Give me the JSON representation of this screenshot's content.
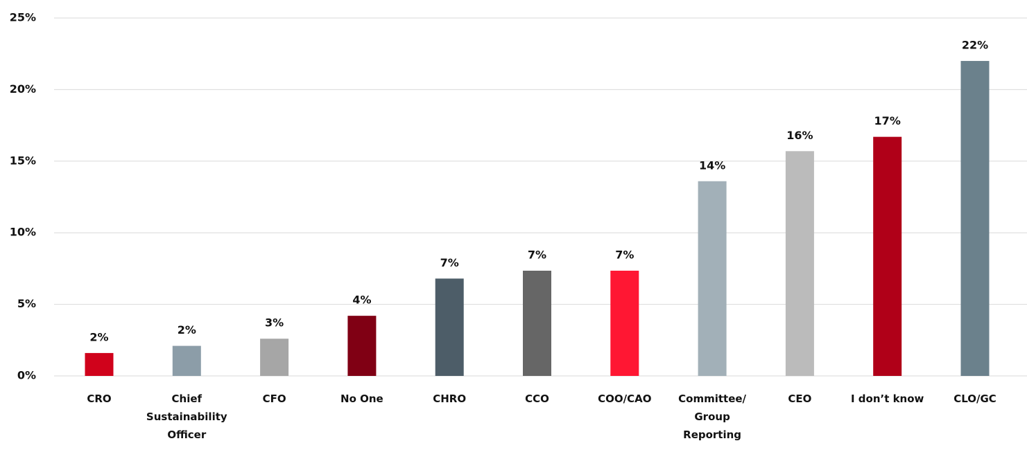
{
  "chart_data": {
    "type": "bar",
    "categories": [
      "CRO",
      "Chief\nSustainability\nOfficer",
      "CFO",
      "No One",
      "CHRO",
      "CCO",
      "COO/CAO",
      "Committee/\nGroup\nReporting",
      "CEO",
      "I don’t know",
      "CLO/GC"
    ],
    "values": [
      1.6,
      2.1,
      2.6,
      4.2,
      6.8,
      7.35,
      7.35,
      13.6,
      15.7,
      16.7,
      22.0
    ],
    "value_labels": [
      "2%",
      "2%",
      "3%",
      "4%",
      "7%",
      "7%",
      "7%",
      "14%",
      "16%",
      "17%",
      "22%"
    ],
    "colors": [
      "#d0021b",
      "#8c9da8",
      "#a6a6a6",
      "#800014",
      "#4d5d68",
      "#666666",
      "#ff1733",
      "#a2b0b8",
      "#bbbbbb",
      "#b00018",
      "#6b818c"
    ],
    "ylim": [
      0,
      25
    ],
    "yticks": [
      {
        "value": 0,
        "label": "0%"
      },
      {
        "value": 5,
        "label": "5%"
      },
      {
        "value": 10,
        "label": "10%"
      },
      {
        "value": 15,
        "label": "15%"
      },
      {
        "value": 20,
        "label": "20%"
      },
      {
        "value": 25,
        "label": "25%"
      }
    ],
    "grid": true
  }
}
